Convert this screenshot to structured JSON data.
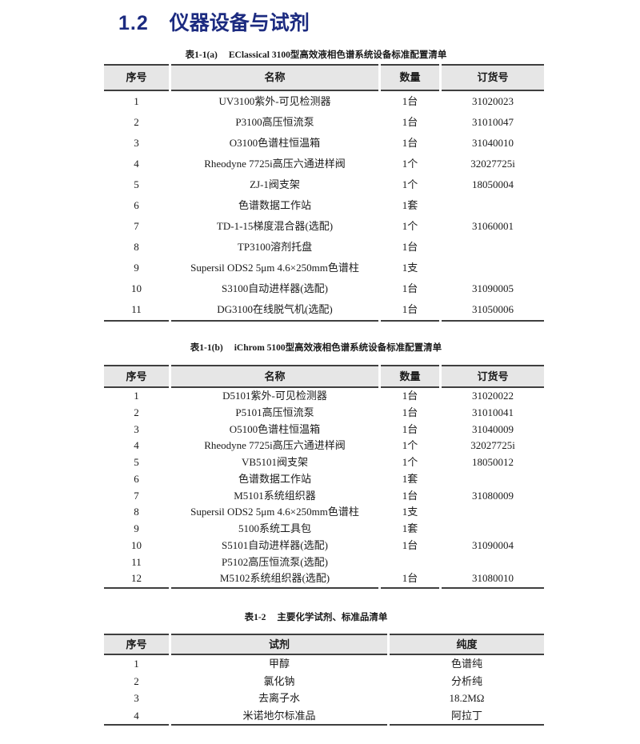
{
  "heading": {
    "number": "1.2",
    "title": "仪器设备与试剂"
  },
  "colors": {
    "heading_blue": "#1c2b80",
    "header_bg": "#e6e6e6",
    "border_dark": "#3f3f3f",
    "text": "#1a1a1a"
  },
  "tables": [
    {
      "caption_label": "表1-1(a)",
      "caption_title": "EClassical 3100型高效液相色谱系统设备标准配置清单",
      "columns": [
        "序号",
        "名称",
        "数量",
        "订货号"
      ],
      "rows": [
        [
          "1",
          "UV3100紫外-可见检测器",
          "1台",
          "31020023"
        ],
        [
          "2",
          "P3100高压恒流泵",
          "1台",
          "31010047"
        ],
        [
          "3",
          "O3100色谱柱恒温箱",
          "1台",
          "31040010"
        ],
        [
          "4",
          "Rheodyne 7725i高压六通进样阀",
          "1个",
          "32027725i"
        ],
        [
          "5",
          "ZJ-1阀支架",
          "1个",
          "18050004"
        ],
        [
          "6",
          "色谱数据工作站",
          "1套",
          ""
        ],
        [
          "7",
          "TD-1-15梯度混合器(选配)",
          "1个",
          "31060001"
        ],
        [
          "8",
          "TP3100溶剂托盘",
          "1台",
          ""
        ],
        [
          "9",
          "Supersil ODS2 5μm 4.6×250mm色谱柱",
          "1支",
          ""
        ],
        [
          "10",
          "S3100自动进样器(选配)",
          "1台",
          "31090005"
        ],
        [
          "11",
          "DG3100在线脱气机(选配)",
          "1台",
          "31050006"
        ]
      ]
    },
    {
      "caption_label": "表1-1(b)",
      "caption_title": "iChrom 5100型高效液相色谱系统设备标准配置清单",
      "columns": [
        "序号",
        "名称",
        "数量",
        "订货号"
      ],
      "rows": [
        [
          "1",
          "D5101紫外-可见检测器",
          "1台",
          "31020022"
        ],
        [
          "2",
          "P5101高压恒流泵",
          "1台",
          "31010041"
        ],
        [
          "3",
          "O5100色谱柱恒温箱",
          "1台",
          "31040009"
        ],
        [
          "4",
          "Rheodyne 7725i高压六通进样阀",
          "1个",
          "32027725i"
        ],
        [
          "5",
          "VB5101阀支架",
          "1个",
          "18050012"
        ],
        [
          "6",
          "色谱数据工作站",
          "1套",
          ""
        ],
        [
          "7",
          "M5101系统组织器",
          "1台",
          "31080009"
        ],
        [
          "8",
          "Supersil ODS2 5μm 4.6×250mm色谱柱",
          "1支",
          ""
        ],
        [
          "9",
          "5100系统工具包",
          "1套",
          ""
        ],
        [
          "10",
          "S5101自动进样器(选配)",
          "1台",
          "31090004"
        ],
        [
          "11",
          "P5102高压恒流泵(选配)",
          "",
          ""
        ],
        [
          "12",
          "M5102系统组织器(选配)",
          "1台",
          "31080010"
        ]
      ]
    },
    {
      "caption_label": "表1-2",
      "caption_title": "主要化学试剂、标准品清单",
      "columns": [
        "序号",
        "试剂",
        "纯度"
      ],
      "rows": [
        [
          "1",
          "甲醇",
          "色谱纯"
        ],
        [
          "2",
          "氯化钠",
          "分析纯"
        ],
        [
          "3",
          "去离子水",
          "18.2MΩ"
        ],
        [
          "4",
          "米诺地尔标准品",
          "阿拉丁"
        ]
      ]
    }
  ]
}
